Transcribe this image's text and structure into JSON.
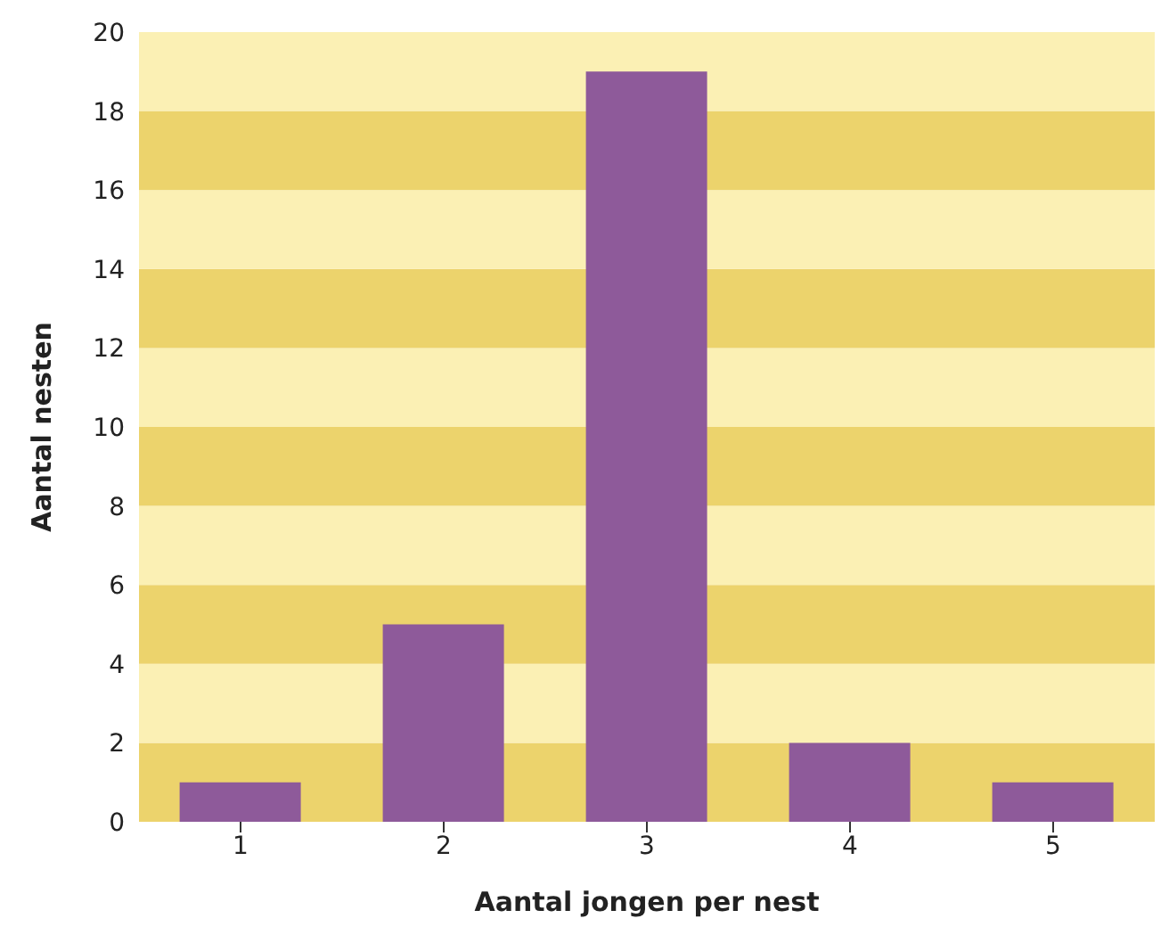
{
  "chart_data": {
    "type": "bar",
    "xlabel": "Aantal jongen per nest",
    "ylabel": "Aantal nesten",
    "categories": [
      "1",
      "2",
      "3",
      "4",
      "5"
    ],
    "values": [
      1,
      5,
      19,
      2,
      1
    ],
    "color": "#8e5a9a",
    "ylim": [
      0,
      20
    ],
    "yticks": [
      0,
      2,
      4,
      6,
      8,
      10,
      12,
      14,
      16,
      18,
      20
    ],
    "bands": [
      {
        "axis": "y",
        "from": 0,
        "to": 2,
        "color": "#ecd36c"
      },
      {
        "axis": "y",
        "from": 2,
        "to": 4,
        "color": "#fbf0b4"
      },
      {
        "axis": "y",
        "from": 4,
        "to": 6,
        "color": "#ecd36c"
      },
      {
        "axis": "y",
        "from": 6,
        "to": 8,
        "color": "#fbf0b4"
      },
      {
        "axis": "y",
        "from": 8,
        "to": 10,
        "color": "#ecd36c"
      },
      {
        "axis": "y",
        "from": 10,
        "to": 12,
        "color": "#fbf0b4"
      },
      {
        "axis": "y",
        "from": 12,
        "to": 14,
        "color": "#ecd36c"
      },
      {
        "axis": "y",
        "from": 14,
        "to": 16,
        "color": "#fbf0b4"
      },
      {
        "axis": "y",
        "from": 16,
        "to": 18,
        "color": "#ecd36c"
      },
      {
        "axis": "y",
        "from": 18,
        "to": 20,
        "color": "#fbf0b4"
      }
    ]
  }
}
